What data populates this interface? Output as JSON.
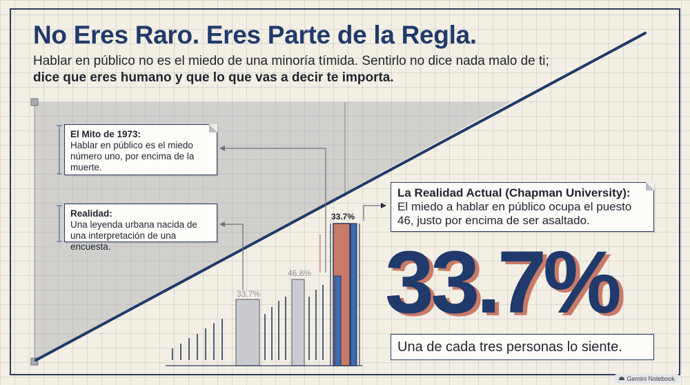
{
  "header": {
    "title": "No Eres Raro. Eres Parte de la Regla.",
    "subtitle_plain": "Hablar en público no es el miedo de una minoría tímida. Sentirlo no dice nada malo de ti; ",
    "subtitle_bold": "dice que eres humano y que lo que vas a decir te importa."
  },
  "cards": {
    "myth_title": "El Mito de 1973:",
    "myth_body": "Hablar en público es el miedo número uno, por encima de la muerte.",
    "reality_title": "Realidad:",
    "reality_body": "Una leyenda urbana nacida de una interpretación de una encuesta.",
    "actual_title": "La Realidad Actual (Chapman University):",
    "actual_body": "El miedo a hablar en público ocupa el puesto 46, justo por encima de ser asaltado."
  },
  "highlight": {
    "value": "33.7%",
    "caption": "Una de cada tres personas lo siente."
  },
  "bar_labels": {
    "first": "33.7%",
    "second": "46.8%",
    "third": "33.7%"
  },
  "colors": {
    "navy": "#1f3a6b",
    "salmon": "#c97a68",
    "grey": "#c9cbd0",
    "ink": "#2a3a5c"
  },
  "badge": {
    "icon": "gemini-icon",
    "label": "Gemini Notebook"
  }
}
